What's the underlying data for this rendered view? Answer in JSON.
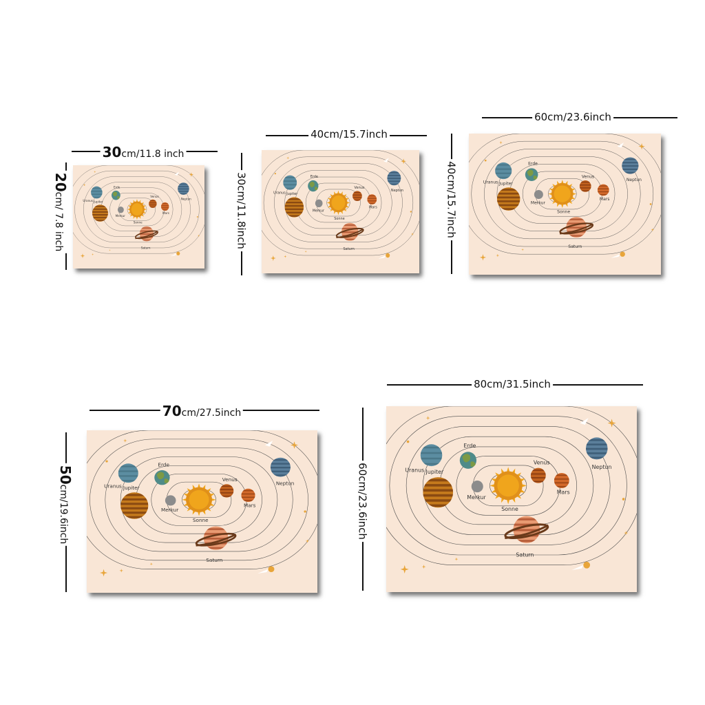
{
  "artwork": {
    "planet_labels": {
      "mercury": "Merkur",
      "venus": "Venus",
      "earth": "Erde",
      "mars": "Mars",
      "jupiter": "Jupiter",
      "saturn": "Saturn",
      "uranus": "Uranus",
      "neptune": "Neptun",
      "sun": "Sonne"
    },
    "colors": {
      "background": "#f9e6d6",
      "orbit": "#4a4a4a",
      "sun": "#f0a51c",
      "sun_core": "#e0901a",
      "mercury": "#8c8c8c",
      "venus": "#c0611e",
      "earth": "#4f8b89",
      "mars": "#d2692a",
      "jupiter": "#c57a1c",
      "saturn": "#e89a72",
      "uranus": "#5c8da1",
      "neptune": "#5b7f9b",
      "star": "#e8a53a"
    }
  },
  "sizes": [
    {
      "width_big": "30",
      "width_small": "cm/11.8 inch",
      "height_big": "20",
      "height_small": "cm/ 7.8 inch"
    },
    {
      "width": "40cm/15.7inch",
      "height": "30cm/11.8inch"
    },
    {
      "width": "60cm/23.6inch",
      "height": "40cm/15.7inch"
    },
    {
      "width_big": "70",
      "width_small": "cm/27.5inch",
      "height_big": "50",
      "height_small": "cm/19.6inch"
    },
    {
      "width": "80cm/31.5inch",
      "height": "60cm/23.6inch"
    }
  ]
}
